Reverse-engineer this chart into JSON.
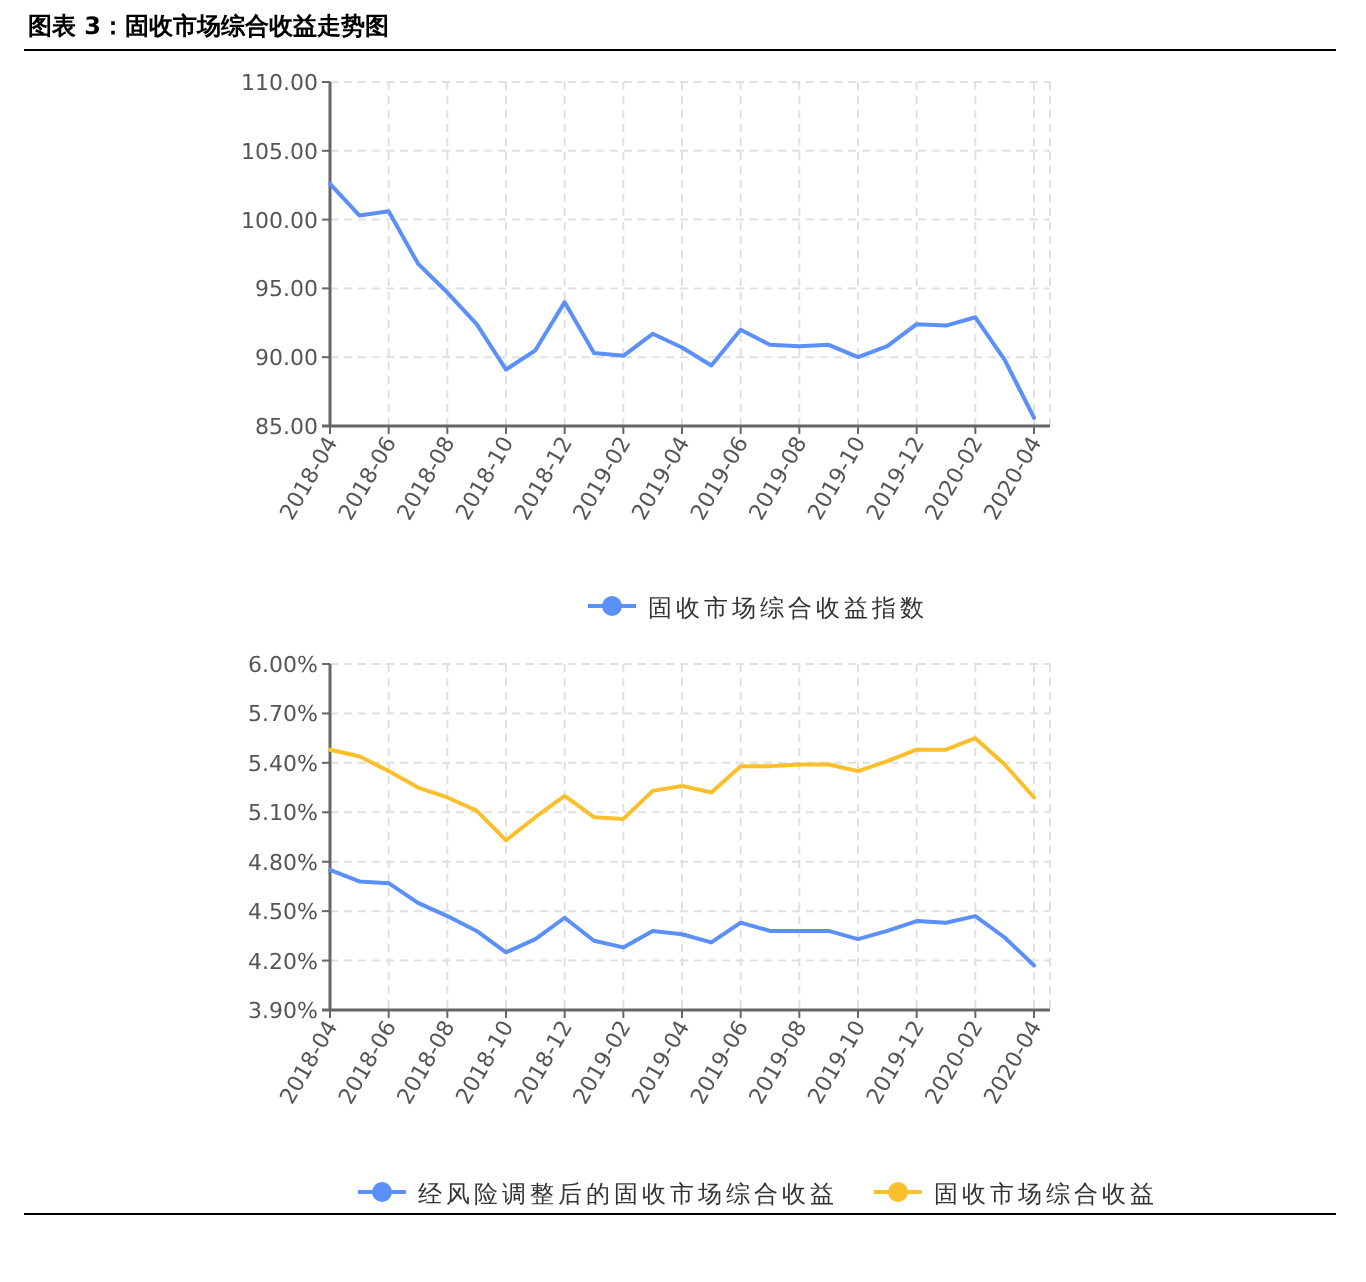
{
  "chart_data": [
    {
      "type": "line",
      "title": "图表 3：固收市场综合收益走势图",
      "categories": [
        "2018-04",
        null,
        "2018-06",
        null,
        "2018-08",
        null,
        "2018-10",
        null,
        "2018-12",
        null,
        "2019-02",
        null,
        "2019-04",
        null,
        "2019-06",
        null,
        "2019-08",
        null,
        "2019-10",
        null,
        "2019-12",
        null,
        "2020-02",
        null,
        "2020-04"
      ],
      "series": [
        {
          "name": "固收市场综合收益指数",
          "color": "#5b8ff9",
          "values": [
            102.6,
            100.3,
            100.6,
            96.8,
            94.7,
            92.4,
            89.1,
            90.5,
            94.0,
            90.3,
            90.1,
            91.7,
            90.7,
            89.4,
            92.0,
            90.9,
            90.8,
            90.9,
            90.0,
            90.8,
            92.4,
            92.3,
            92.9,
            89.8,
            85.6
          ]
        }
      ],
      "ylim": [
        85,
        110
      ],
      "yticks": [
        {
          "value": 85,
          "label": "85.00"
        },
        {
          "value": 90,
          "label": "90.00"
        },
        {
          "value": 95,
          "label": "95.00"
        },
        {
          "value": 100,
          "label": "100.00"
        },
        {
          "value": 105,
          "label": "105.00"
        },
        {
          "value": 110,
          "label": "110.00"
        }
      ],
      "grid": true,
      "legend": "bottom"
    },
    {
      "type": "line",
      "categories": [
        "2018-04",
        null,
        "2018-06",
        null,
        "2018-08",
        null,
        "2018-10",
        null,
        "2018-12",
        null,
        "2019-02",
        null,
        "2019-04",
        null,
        "2019-06",
        null,
        "2019-08",
        null,
        "2019-10",
        null,
        "2019-12",
        null,
        "2020-02",
        null,
        "2020-04"
      ],
      "series": [
        {
          "name": "经风险调整后的固收市场综合收益",
          "color": "#5b8ff9",
          "values": [
            4.75,
            4.68,
            4.67,
            4.55,
            4.47,
            4.38,
            4.25,
            4.33,
            4.46,
            4.32,
            4.28,
            4.38,
            4.36,
            4.31,
            4.43,
            4.38,
            4.38,
            4.38,
            4.33,
            4.38,
            4.44,
            4.43,
            4.47,
            4.34,
            4.17
          ]
        },
        {
          "name": "固收市场综合收益",
          "color": "#fbbf2b",
          "values": [
            5.48,
            5.44,
            5.35,
            5.25,
            5.19,
            5.11,
            4.93,
            5.07,
            5.2,
            5.07,
            5.06,
            5.23,
            5.26,
            5.22,
            5.38,
            5.38,
            5.39,
            5.39,
            5.35,
            5.41,
            5.48,
            5.48,
            5.55,
            5.39,
            5.19
          ]
        }
      ],
      "ylim": [
        3.9,
        6.0
      ],
      "yticks": [
        {
          "value": 3.9,
          "label": "3.90%"
        },
        {
          "value": 4.2,
          "label": "4.20%"
        },
        {
          "value": 4.5,
          "label": "4.50%"
        },
        {
          "value": 4.8,
          "label": "4.80%"
        },
        {
          "value": 5.1,
          "label": "5.10%"
        },
        {
          "value": 5.4,
          "label": "5.40%"
        },
        {
          "value": 5.7,
          "label": "5.70%"
        },
        {
          "value": 6.0,
          "label": "6.00%"
        }
      ],
      "grid": true,
      "legend": "bottom"
    }
  ]
}
